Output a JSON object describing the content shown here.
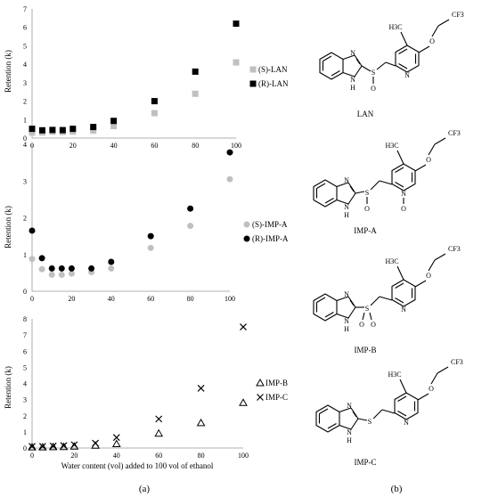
{
  "panel_labels": {
    "a": "(a)",
    "b": "(b)"
  },
  "chart_data": [
    {
      "type": "scatter",
      "ylabel": "Retention (k)",
      "xlabel": "",
      "xlim": [
        0,
        100
      ],
      "ylim": [
        0,
        7
      ],
      "xticks": [
        0,
        20,
        40,
        60,
        80,
        100
      ],
      "yticks": [
        0,
        1,
        2,
        3,
        4,
        5,
        6,
        7
      ],
      "legend_position": "right",
      "series": [
        {
          "name": "(S)-LAN",
          "marker": "square",
          "color": "#c0c0c0",
          "x": [
            0,
            5,
            10,
            15,
            20,
            30,
            40,
            60,
            80,
            100
          ],
          "y": [
            0.3,
            0.3,
            0.35,
            0.33,
            0.35,
            0.4,
            0.65,
            1.35,
            2.4,
            4.1
          ]
        },
        {
          "name": "(R)-LAN",
          "marker": "square",
          "color": "#000000",
          "x": [
            0,
            5,
            10,
            15,
            20,
            30,
            40,
            60,
            80,
            100
          ],
          "y": [
            0.5,
            0.42,
            0.44,
            0.43,
            0.5,
            0.6,
            0.93,
            2.0,
            3.6,
            6.2
          ]
        }
      ]
    },
    {
      "type": "scatter",
      "ylabel": "Retention (k)",
      "xlabel": "",
      "xlim": [
        0,
        100
      ],
      "ylim": [
        0,
        4
      ],
      "xticks": [
        0,
        20,
        40,
        60,
        80,
        100
      ],
      "yticks": [
        0,
        1,
        2,
        3,
        4
      ],
      "legend_position": "right",
      "series": [
        {
          "name": "(S)-IMP-A",
          "marker": "circle",
          "color": "#c0c0c0",
          "x": [
            0,
            5,
            10,
            15,
            20,
            30,
            40,
            60,
            80,
            100
          ],
          "y": [
            0.88,
            0.6,
            0.45,
            0.45,
            0.48,
            0.52,
            0.62,
            1.18,
            1.78,
            3.05
          ]
        },
        {
          "name": "(R)-IMP-A",
          "marker": "circle",
          "color": "#000000",
          "x": [
            0,
            5,
            10,
            15,
            20,
            30,
            40,
            60,
            80,
            100
          ],
          "y": [
            1.65,
            0.9,
            0.62,
            0.62,
            0.62,
            0.62,
            0.8,
            1.5,
            2.25,
            3.78
          ]
        }
      ]
    },
    {
      "type": "scatter",
      "ylabel": "Retention (k)",
      "xlabel": "Water content (vol) added to 100 vol of ethanol",
      "xlim": [
        0,
        100
      ],
      "ylim": [
        0,
        8
      ],
      "xticks": [
        0,
        20,
        40,
        60,
        80,
        100
      ],
      "yticks": [
        0,
        1,
        2,
        3,
        4,
        5,
        6,
        7,
        8
      ],
      "legend_position": "right",
      "series": [
        {
          "name": "IMP-B",
          "marker": "triangle",
          "color": "#000000",
          "x": [
            0,
            5,
            10,
            15,
            20,
            30,
            40,
            60,
            80,
            100
          ],
          "y": [
            0.05,
            0.05,
            0.06,
            0.07,
            0.1,
            0.15,
            0.25,
            0.9,
            1.55,
            2.8
          ]
        },
        {
          "name": "IMP-C",
          "marker": "cross",
          "color": "#000000",
          "x": [
            0,
            5,
            10,
            15,
            20,
            30,
            40,
            60,
            80,
            100
          ],
          "y": [
            0.1,
            0.1,
            0.12,
            0.15,
            0.2,
            0.3,
            0.65,
            1.8,
            3.7,
            7.5
          ]
        }
      ]
    }
  ],
  "structures": [
    {
      "label": "LAN",
      "atoms": {
        "n": "N",
        "nh": "H",
        "nh_n": "N",
        "s": "S",
        "o_sulf": "O",
        "ch3": "H3C",
        "pyr_n": "N",
        "o_ether": "O",
        "cf3": "CF3"
      }
    },
    {
      "label": "IMP-A",
      "atoms": {
        "n": "N",
        "nh": "H",
        "nh_n": "N",
        "s": "S",
        "o_sulf": "O",
        "ch3": "H3C",
        "pyr_n": "N",
        "pyr_o": "O",
        "o_ether": "O",
        "cf3": "CF3"
      }
    },
    {
      "label": "IMP-B",
      "atoms": {
        "n": "N",
        "nh": "H",
        "nh_n": "N",
        "s": "S",
        "o_sulf": "O",
        "o_sulf2": "O",
        "ch3": "H3C",
        "pyr_n": "N",
        "o_ether": "O",
        "cf3": "CF3"
      }
    },
    {
      "label": "IMP-C",
      "atoms": {
        "n": "N",
        "nh": "H",
        "nh_n": "N",
        "s": "S",
        "ch3": "H3C",
        "pyr_n": "N",
        "o_ether": "O",
        "cf3": "CF3"
      }
    }
  ]
}
